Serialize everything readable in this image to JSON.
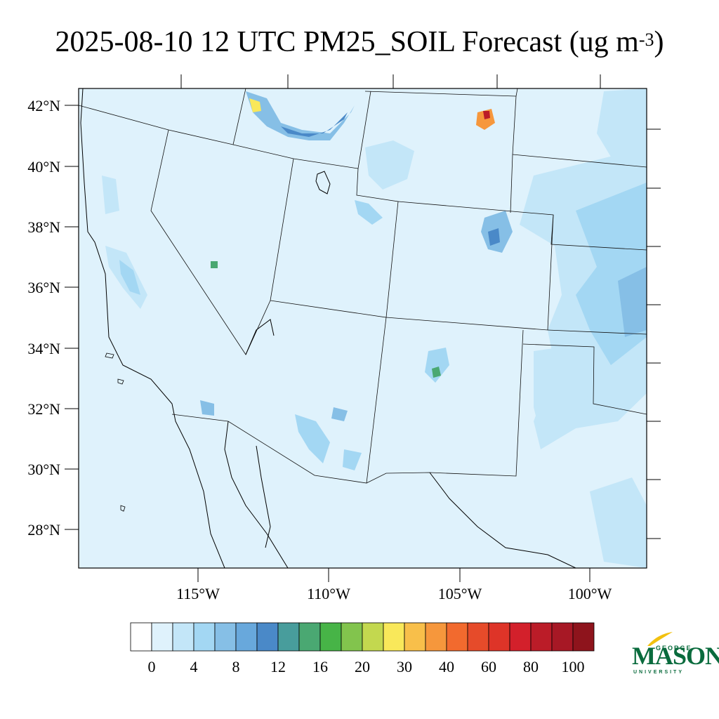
{
  "title": {
    "main": "2025-08-10 12 UTC PM25_SOIL Forecast (ug m",
    "sup": "-3",
    "close": ")"
  },
  "map": {
    "region": "Southwestern United States",
    "lat_labels": [
      "42°N",
      "40°N",
      "38°N",
      "36°N",
      "34°N",
      "32°N",
      "30°N",
      "28°N"
    ],
    "lon_labels": [
      "115°W",
      "110°W",
      "105°W",
      "100°W"
    ]
  },
  "colorbar": {
    "tick_labels": [
      "0",
      "4",
      "8",
      "12",
      "16",
      "20",
      "30",
      "40",
      "60",
      "80",
      "100"
    ],
    "colors": [
      "#ffffff",
      "#dff2fc",
      "#c3e6f8",
      "#a3d7f3",
      "#86bfe6",
      "#68a8dc",
      "#4a89c8",
      "#489d9c",
      "#4aa872",
      "#47b447",
      "#82c44d",
      "#c3d84f",
      "#f9e85a",
      "#f8bf4a",
      "#f6973c",
      "#f26a2e",
      "#e64b2a",
      "#de3428",
      "#d3202b",
      "#bb1c28",
      "#a71825",
      "#8e141c"
    ]
  },
  "logo": {
    "george": "GEORGE",
    "mason": "MASON",
    "university": "UNIVERSITY"
  }
}
